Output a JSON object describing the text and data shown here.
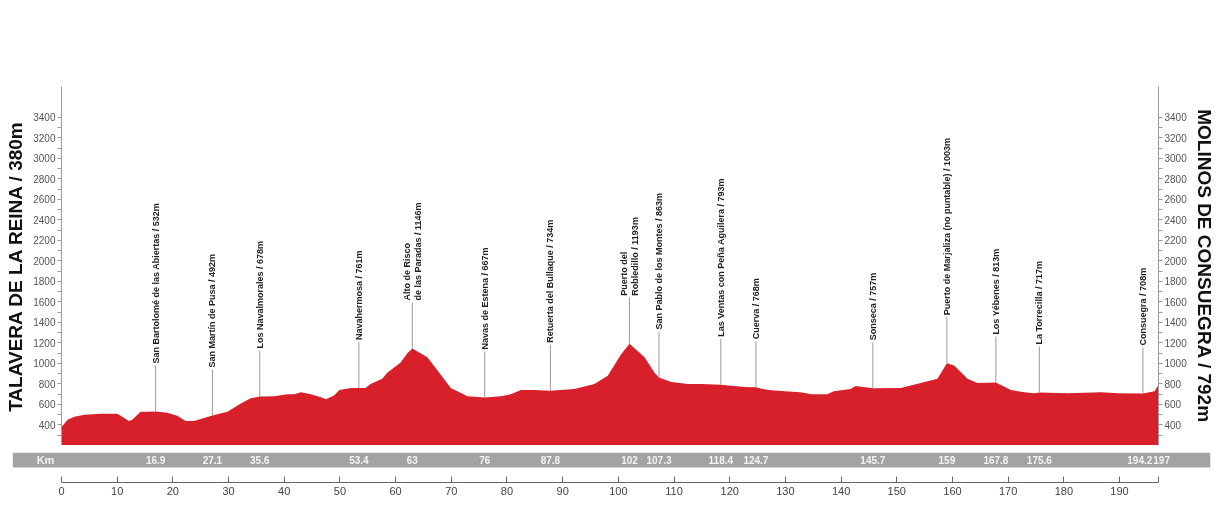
{
  "chart_data": {
    "type": "area",
    "color": "#d7202a",
    "x": [
      0,
      1.1,
      2.3,
      4.1,
      7.1,
      10,
      10.6,
      12.1,
      12.7,
      14.2,
      15.4,
      16.9,
      19,
      20.8,
      22.3,
      23.8,
      27.1,
      29.8,
      32.2,
      34,
      35.6,
      38.2,
      40.6,
      41.8,
      43,
      44.8,
      46.6,
      47.5,
      49,
      49.9,
      52,
      53.4,
      54.6,
      55.5,
      57.6,
      58.5,
      60.9,
      62.1,
      63,
      65.7,
      68.1,
      69.9,
      72.9,
      76,
      78.9,
      80.7,
      82.5,
      84.9,
      87.8,
      92.1,
      95.7,
      98.1,
      100.5,
      102,
      104.7,
      106.5,
      107.3,
      109.5,
      112.5,
      114.9,
      118.4,
      122.7,
      124.7,
      126.9,
      129.9,
      132.7,
      134.7,
      137.5,
      138.7,
      141.7,
      142.6,
      145.7,
      150.7,
      154.3,
      157.3,
      159,
      160.3,
      162.7,
      164.5,
      167.8,
      170.5,
      172.9,
      174.7,
      175.6,
      180.7,
      186.7,
      189.7,
      194.2,
      196.3,
      197
    ],
    "values": [
      380,
      450,
      480,
      500,
      510,
      510,
      490,
      440,
      450,
      530,
      530,
      532,
      520,
      490,
      440,
      440,
      492,
      530,
      610,
      660,
      678,
      680,
      700,
      700,
      720,
      700,
      670,
      650,
      690,
      740,
      760,
      761,
      760,
      800,
      850,
      910,
      1010,
      1100,
      1146,
      1060,
      890,
      760,
      680,
      667,
      680,
      700,
      740,
      740,
      734,
      750,
      800,
      880,
      1090,
      1193,
      1060,
      910,
      863,
      820,
      800,
      800,
      793,
      770,
      768,
      740,
      730,
      720,
      700,
      700,
      730,
      750,
      780,
      757,
      760,
      810,
      850,
      1003,
      980,
      850,
      810,
      813,
      740,
      720,
      710,
      717,
      710,
      720,
      710,
      708,
      730,
      792
    ],
    "xlim": [
      0,
      197
    ],
    "xticks": [
      0,
      10,
      20,
      30,
      40,
      50,
      60,
      70,
      80,
      90,
      100,
      110,
      120,
      130,
      140,
      150,
      160,
      170,
      180,
      190,
      {
        "value": 197,
        "label": null
      }
    ],
    "ylim": [
      200,
      3700
    ],
    "yticks": [
      {
        "value": 300,
        "label": null
      },
      400,
      {
        "value": 500,
        "label": null
      },
      600,
      {
        "value": 700,
        "label": null
      },
      800,
      {
        "value": 900,
        "label": null
      },
      1000,
      {
        "value": 1100,
        "label": null
      },
      1200,
      {
        "value": 1300,
        "label": null
      },
      1400,
      {
        "value": 1500,
        "label": null
      },
      1600,
      {
        "value": 1700,
        "label": null
      },
      1800,
      {
        "value": 1900,
        "label": null
      },
      2000,
      {
        "value": 2100,
        "label": null
      },
      2200,
      {
        "value": 2300,
        "label": null
      },
      2400,
      {
        "value": 2500,
        "label": null
      },
      2600,
      {
        "value": 2700,
        "label": null
      },
      2800,
      {
        "value": 2900,
        "label": null
      },
      3000,
      {
        "value": 3100,
        "label": null
      },
      3200,
      {
        "value": 3300,
        "label": null
      },
      3400
    ],
    "y2lim": [
      200,
      3700
    ],
    "y2ticks": [
      {
        "value": 300,
        "label": null
      },
      400,
      {
        "value": 500,
        "label": null
      },
      600,
      {
        "value": 700,
        "label": null
      },
      800,
      {
        "value": 900,
        "label": null
      },
      1000,
      {
        "value": 1100,
        "label": null
      },
      1200,
      {
        "value": 1300,
        "label": null
      },
      1400,
      {
        "value": 1500,
        "label": null
      },
      1600,
      {
        "value": 1700,
        "label": null
      },
      1800,
      {
        "value": 1900,
        "label": null
      },
      2000,
      {
        "value": 2100,
        "label": null
      },
      2200,
      {
        "value": 2300,
        "label": null
      },
      2400,
      {
        "value": 2500,
        "label": null
      },
      2600,
      {
        "value": 2700,
        "label": null
      },
      2800,
      {
        "value": 2900,
        "label": null
      },
      3000,
      {
        "value": 3100,
        "label": null
      },
      3200,
      {
        "value": 3300,
        "label": null
      },
      3400
    ],
    "ylabel": "TALAVERA DE LA REINA / 380m",
    "y2label": "MOLINOS DE CONSUEGRA / 792m",
    "x2label": "Km",
    "x2lim": [
      0,
      197
    ],
    "x2ticks": [
      16.9,
      27.1,
      35.6,
      53.4,
      63,
      76,
      87.8,
      102,
      107.3,
      118.4,
      124.7,
      145.7,
      159,
      167.8,
      175.6,
      194.2,
      197
    ],
    "annotations": [
      {
        "text": "San Bartolomé de las Abiertas / 532m",
        "x": 16.9,
        "y": 532
      },
      {
        "text": "San Martín de Pusa / 492m",
        "x": 27.1,
        "y": 492
      },
      {
        "text": "Los Navalmorales / 678m",
        "x": 35.6,
        "y": 678
      },
      {
        "text": "Navahermosa / 761m",
        "x": 53.4,
        "y": 761
      },
      {
        "text": "Alto de Risco\nde las Paradas / 1146m",
        "x": 63,
        "y": 1146
      },
      {
        "text": "Navas de Estena / 667m",
        "x": 76,
        "y": 667
      },
      {
        "text": "Retuerta del Bullaque / 734m",
        "x": 87.8,
        "y": 734
      },
      {
        "text": "Puerto del\nRobledillo / 1193m",
        "x": 102,
        "y": 1193
      },
      {
        "text": "San Pablo de los Montes / 863m",
        "x": 107.3,
        "y": 863
      },
      {
        "text": "Las Ventas con Peña Aguilera / 793m",
        "x": 118.4,
        "y": 793
      },
      {
        "text": "Cuerva / 768m",
        "x": 124.7,
        "y": 768
      },
      {
        "text": "Sonseca / 757m",
        "x": 145.7,
        "y": 757
      },
      {
        "text": "Puerto de Marjaliza (no puntable) / 1003m",
        "x": 159,
        "y": 1003
      },
      {
        "text": "Los Yébenes / 813m",
        "x": 167.8,
        "y": 813
      },
      {
        "text": "La Torrecilla / 717m",
        "x": 175.6,
        "y": 717
      },
      {
        "text": "Consuegra / 708m",
        "x": 194.2,
        "y": 708
      }
    ]
  }
}
